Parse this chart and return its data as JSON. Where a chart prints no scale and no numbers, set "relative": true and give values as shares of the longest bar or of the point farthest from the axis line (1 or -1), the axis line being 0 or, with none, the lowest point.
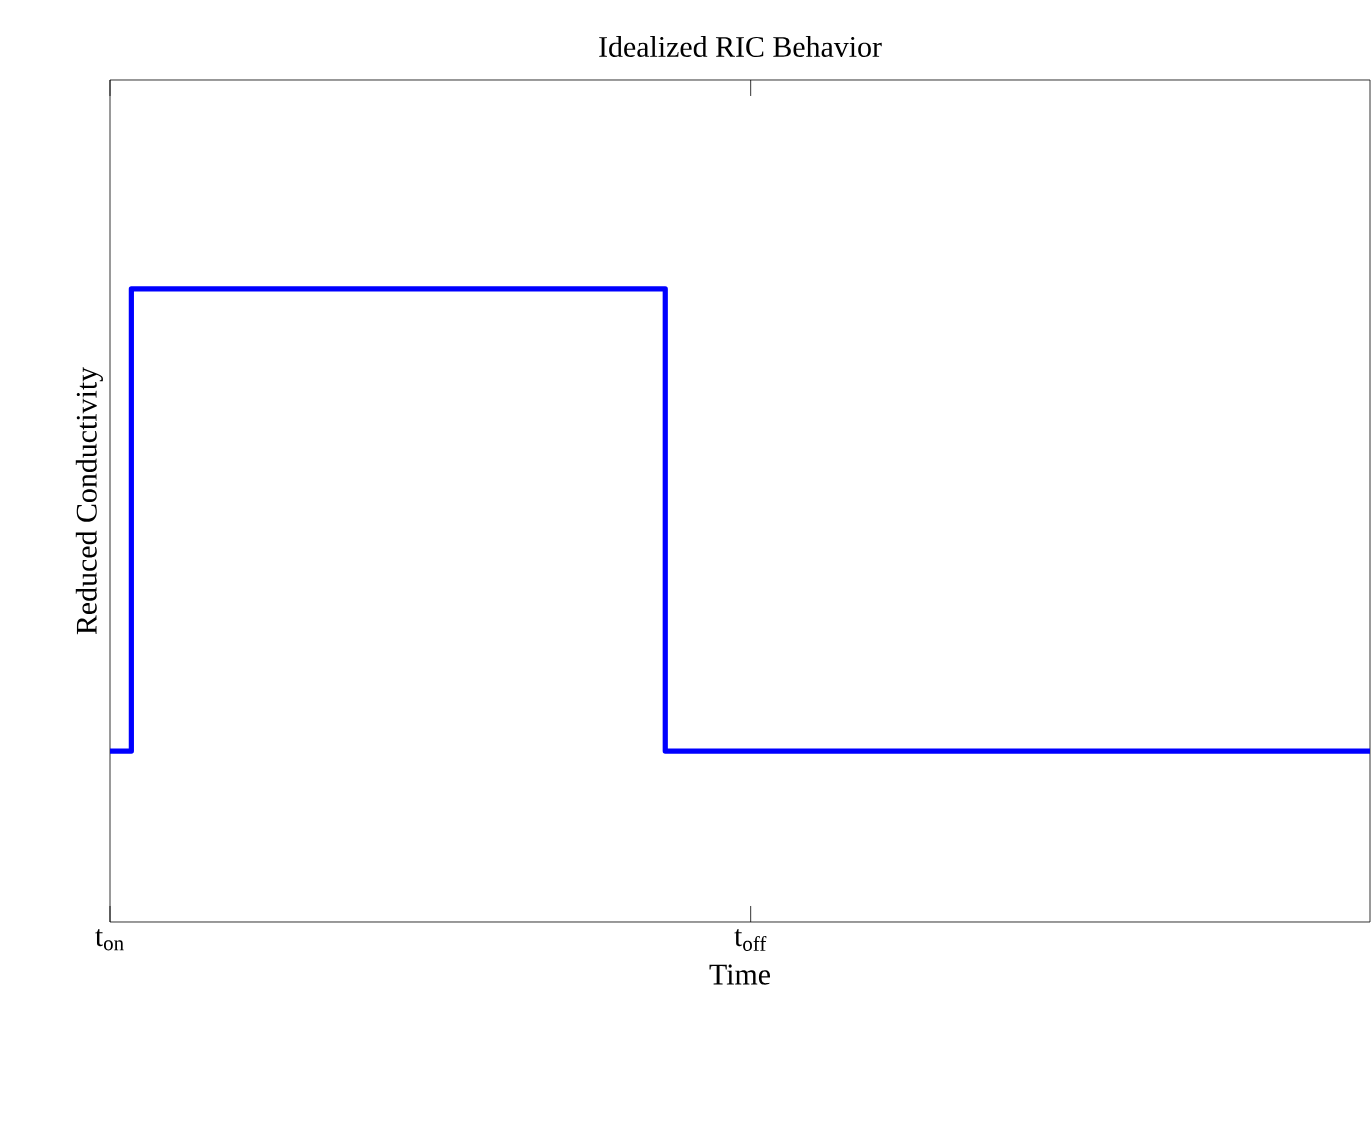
{
  "chart_data": {
    "type": "step",
    "title": "Idealized RIC Behavior",
    "xlabel": "Time",
    "ylabel": "Reduced Conductivity",
    "categories": [
      "t$_{on}$",
      null,
      null,
      null,
      null,
      null,
      null,
      null,
      null,
      null,
      null,
      null,
      null,
      null,
      null,
      null,
      null,
      null,
      null,
      null,
      null,
      null,
      null,
      null,
      null,
      null,
      null,
      null,
      null,
      null,
      "t$_{off}$",
      null,
      null,
      null,
      null,
      null,
      null,
      null,
      null,
      null,
      null,
      null,
      null,
      null,
      null,
      null,
      null,
      null,
      null,
      null,
      null,
      null,
      null,
      null,
      null,
      null,
      null,
      null,
      null,
      null
    ],
    "values": [
      0.27,
      1,
      1,
      1,
      1,
      1,
      1,
      1,
      1,
      1,
      1,
      1,
      1,
      1,
      1,
      1,
      1,
      1,
      1,
      1,
      1,
      1,
      1,
      1,
      1,
      1,
      0.27,
      0.27,
      0.27,
      0.27,
      0.27,
      0.27,
      0.27,
      0.27,
      0.27,
      0.27,
      0.27,
      0.27,
      0.27,
      0.27,
      0.27,
      0.27,
      0.27,
      0.27,
      0.27,
      0.27,
      0.27,
      0.27,
      0.27,
      0.27,
      0.27,
      0.27,
      0.27,
      0.27,
      0.27,
      0.27,
      0.27,
      0.27,
      0.27,
      0.27
    ],
    "color": "#0000ff",
    "relative": true
  }
}
